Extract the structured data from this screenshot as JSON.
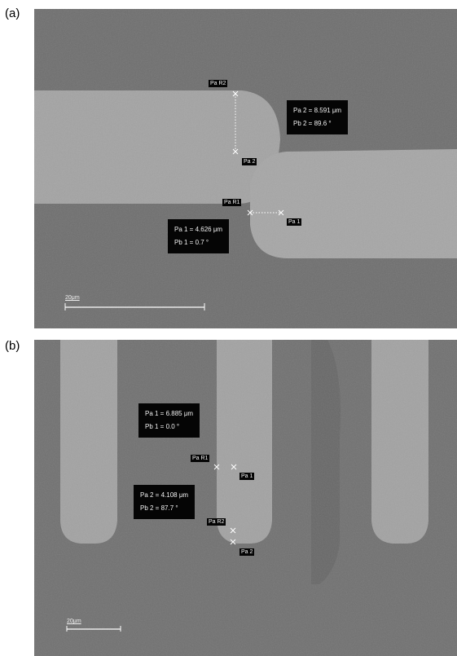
{
  "figure": {
    "panels": [
      {
        "label": "(a)",
        "scale_bar": "20μm",
        "annotations": [
          {
            "line1": "Pa 2 = 8.591 μm",
            "line2": "Pb 2 =  89.6 °"
          },
          {
            "line1": "Pa 1 = 4.626 μm",
            "line2": "Pb 1 =  0.7 °"
          }
        ],
        "tags": [
          "Pa R2",
          "Pa 2",
          "Pa R1",
          "Pa 1"
        ]
      },
      {
        "label": "(b)",
        "scale_bar": "20μm",
        "annotations": [
          {
            "line1": "Pa 1 = 6.885 μm",
            "line2": "Pb 1 =  0.0 °"
          },
          {
            "line1": "Pa 2 = 4.108 μm",
            "line2": "Pb 2 =  87.7 °"
          }
        ],
        "tags": [
          "Pa R1",
          "Pa 1",
          "Pa R2",
          "Pa 2"
        ]
      }
    ]
  }
}
